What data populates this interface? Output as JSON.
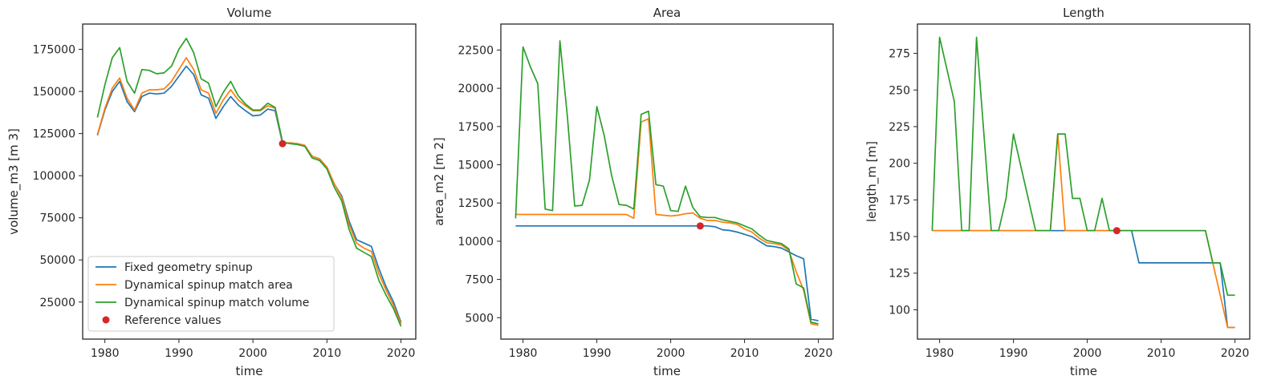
{
  "chart_data": [
    {
      "type": "line",
      "title": "Volume",
      "xlabel": "time",
      "ylabel": "volume_m3 [m 3]",
      "xlim": [
        1977,
        2022
      ],
      "ylim": [
        3000,
        190000
      ],
      "xticks": [
        1980,
        1990,
        2000,
        2010,
        2020
      ],
      "yticks": [
        25000,
        50000,
        75000,
        100000,
        125000,
        150000,
        175000
      ],
      "grid": false,
      "legend": "lower-left",
      "x": [
        1979,
        1980,
        1981,
        1982,
        1983,
        1984,
        1985,
        1986,
        1987,
        1988,
        1989,
        1990,
        1991,
        1992,
        1993,
        1994,
        1995,
        1996,
        1997,
        1998,
        1999,
        2000,
        2001,
        2002,
        2003,
        2004,
        2005,
        2006,
        2007,
        2008,
        2009,
        2010,
        2011,
        2012,
        2013,
        2014,
        2015,
        2016,
        2017,
        2018,
        2019,
        2020
      ],
      "series": [
        {
          "name": "Fixed geometry spinup",
          "color": "#1f77b4",
          "values": [
            124000,
            139000,
            150000,
            156000,
            144000,
            138000,
            147000,
            149000,
            148500,
            149000,
            153000,
            159000,
            165000,
            160000,
            148000,
            146000,
            134000,
            141000,
            147000,
            142000,
            138500,
            135500,
            136000,
            139500,
            138500,
            119000,
            119500,
            119000,
            118000,
            111500,
            110000,
            105000,
            95000,
            88000,
            73000,
            62000,
            60000,
            58000,
            45000,
            34000,
            25000,
            13000
          ]
        },
        {
          "name": "Dynamical spinup match area",
          "color": "#ff7f0e",
          "values": [
            124500,
            140000,
            152000,
            158000,
            146000,
            139000,
            149000,
            151000,
            151000,
            151500,
            156000,
            163000,
            170000,
            163000,
            151000,
            149000,
            137000,
            145000,
            151000,
            145000,
            141500,
            138500,
            138500,
            141500,
            140000,
            119500,
            119500,
            119000,
            118000,
            111500,
            110000,
            105000,
            95000,
            87000,
            71000,
            60000,
            57000,
            55000,
            42000,
            32000,
            23000,
            12000
          ]
        },
        {
          "name": "Dynamical spinup match volume",
          "color": "#2ca02c",
          "values": [
            134500,
            154000,
            170000,
            176000,
            156000,
            149000,
            163000,
            162500,
            160500,
            161000,
            165000,
            175000,
            181500,
            173000,
            157500,
            155000,
            141000,
            149500,
            156000,
            147500,
            142500,
            139000,
            139000,
            143000,
            140500,
            120000,
            119000,
            118500,
            117500,
            110500,
            109000,
            104000,
            93000,
            85000,
            68000,
            57000,
            54500,
            52000,
            38000,
            29000,
            21000,
            10500
          ]
        }
      ],
      "reference": {
        "name": "Reference values",
        "x": 2004,
        "y": 119000,
        "color": "#d62728"
      }
    },
    {
      "type": "line",
      "title": "Area",
      "xlabel": "time",
      "ylabel": "area_m2 [m 2]",
      "xlim": [
        1977,
        2022
      ],
      "ylim": [
        3600,
        24200
      ],
      "xticks": [
        1980,
        1990,
        2000,
        2010,
        2020
      ],
      "yticks": [
        5000,
        7500,
        10000,
        12500,
        15000,
        17500,
        20000,
        22500
      ],
      "grid": false,
      "x": [
        1979,
        1980,
        1981,
        1982,
        1983,
        1984,
        1985,
        1986,
        1987,
        1988,
        1989,
        1990,
        1991,
        1992,
        1993,
        1994,
        1995,
        1996,
        1997,
        1998,
        1999,
        2000,
        2001,
        2002,
        2003,
        2004,
        2005,
        2006,
        2007,
        2008,
        2009,
        2010,
        2011,
        2012,
        2013,
        2014,
        2015,
        2016,
        2017,
        2018,
        2019,
        2020
      ],
      "series": [
        {
          "name": "Fixed geometry spinup",
          "color": "#1f77b4",
          "values": [
            11000,
            11000,
            11000,
            11000,
            11000,
            11000,
            11000,
            11000,
            11000,
            11000,
            11000,
            11000,
            11000,
            11000,
            11000,
            11000,
            11000,
            11000,
            11000,
            11000,
            11000,
            11000,
            11000,
            11000,
            11000,
            11000,
            11000,
            10950,
            10750,
            10700,
            10600,
            10450,
            10300,
            10000,
            9700,
            9650,
            9550,
            9300,
            9050,
            8850,
            4900,
            4800
          ]
        },
        {
          "name": "Dynamical spinup match area",
          "color": "#ff7f0e",
          "values": [
            11750,
            11750,
            11750,
            11750,
            11750,
            11750,
            11750,
            11750,
            11750,
            11750,
            11750,
            11750,
            11750,
            11750,
            11750,
            11750,
            11500,
            17800,
            18000,
            11750,
            11700,
            11650,
            11700,
            11800,
            11850,
            11500,
            11350,
            11350,
            11250,
            11200,
            11100,
            10800,
            10600,
            10200,
            9900,
            9850,
            9750,
            9400,
            8000,
            6800,
            4600,
            4500
          ]
        },
        {
          "name": "Dynamical spinup match volume",
          "color": "#2ca02c",
          "values": [
            11500,
            22700,
            21400,
            20300,
            12100,
            12000,
            23100,
            18200,
            12300,
            12350,
            14000,
            18800,
            16900,
            14300,
            12400,
            12350,
            12100,
            18300,
            18500,
            13700,
            13600,
            12000,
            11950,
            13600,
            12200,
            11600,
            11550,
            11550,
            11400,
            11300,
            11200,
            11000,
            10800,
            10400,
            10050,
            9950,
            9850,
            9500,
            7200,
            6950,
            4700,
            4600
          ]
        }
      ],
      "reference": {
        "name": "Reference values",
        "x": 2004,
        "y": 11000,
        "color": "#d62728"
      }
    },
    {
      "type": "line",
      "title": "Length",
      "xlabel": "time",
      "ylabel": "length_m [m]",
      "xlim": [
        1977,
        2022
      ],
      "ylim": [
        80,
        295
      ],
      "xticks": [
        1980,
        1990,
        2000,
        2010,
        2020
      ],
      "yticks": [
        100,
        125,
        150,
        175,
        200,
        225,
        250,
        275
      ],
      "grid": false,
      "x": [
        1979,
        1980,
        1981,
        1982,
        1983,
        1984,
        1985,
        1986,
        1987,
        1988,
        1989,
        1990,
        1991,
        1992,
        1993,
        1994,
        1995,
        1996,
        1997,
        1998,
        1999,
        2000,
        2001,
        2002,
        2003,
        2004,
        2005,
        2006,
        2007,
        2008,
        2009,
        2010,
        2011,
        2012,
        2013,
        2014,
        2015,
        2016,
        2017,
        2018,
        2019,
        2020
      ],
      "series": [
        {
          "name": "Fixed geometry spinup",
          "color": "#1f77b4",
          "values": [
            154,
            154,
            154,
            154,
            154,
            154,
            154,
            154,
            154,
            154,
            154,
            154,
            154,
            154,
            154,
            154,
            154,
            154,
            154,
            154,
            154,
            154,
            154,
            154,
            154,
            154,
            154,
            154,
            132,
            132,
            132,
            132,
            132,
            132,
            132,
            132,
            132,
            132,
            132,
            132,
            88,
            88
          ]
        },
        {
          "name": "Dynamical spinup match area",
          "color": "#ff7f0e",
          "values": [
            154,
            154,
            154,
            154,
            154,
            154,
            154,
            154,
            154,
            154,
            154,
            154,
            154,
            154,
            154,
            154,
            154,
            220,
            154,
            154,
            154,
            154,
            154,
            154,
            154,
            154,
            154,
            154,
            154,
            154,
            154,
            154,
            154,
            154,
            154,
            154,
            154,
            154,
            132,
            110,
            88,
            88
          ]
        },
        {
          "name": "Dynamical spinup match volume",
          "color": "#2ca02c",
          "values": [
            154,
            286,
            264,
            242,
            154,
            154,
            286,
            220,
            154,
            154,
            176,
            220,
            198,
            176,
            154,
            154,
            154,
            220,
            220,
            176,
            176,
            154,
            154,
            176,
            154,
            154,
            154,
            154,
            154,
            154,
            154,
            154,
            154,
            154,
            154,
            154,
            154,
            154,
            132,
            132,
            110,
            110
          ]
        }
      ],
      "reference": {
        "name": "Reference values",
        "x": 2004,
        "y": 154,
        "color": "#d62728"
      }
    }
  ]
}
